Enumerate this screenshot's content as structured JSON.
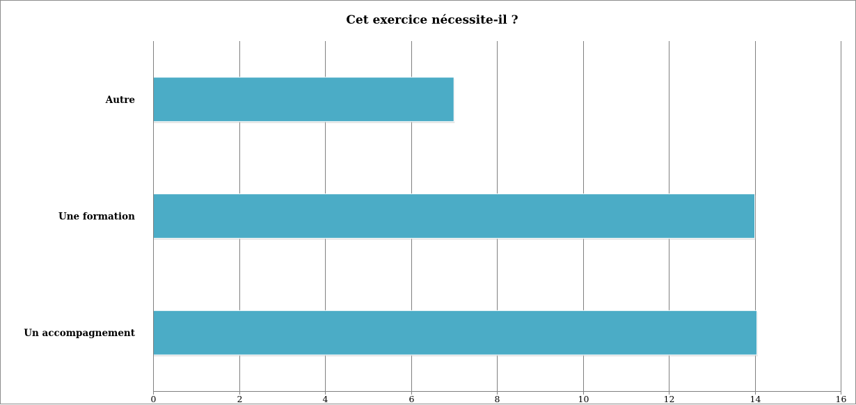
{
  "chart_data": {
    "type": "bar",
    "orientation": "horizontal",
    "title": "Cet exercice nécessite-il ?",
    "categories": [
      "Autre",
      "Une formation",
      "Un accompagnement"
    ],
    "values": [
      7,
      14,
      14.05
    ],
    "xlim": [
      0,
      16
    ],
    "xticks": [
      0,
      2,
      4,
      6,
      8,
      10,
      12,
      14,
      16
    ],
    "xlabel": "",
    "ylabel": "",
    "grid": "vertical",
    "legend": "none",
    "colors": {
      "bar": "#4bacc6",
      "bar_edge": "#ffffff",
      "grid": "#7f7f7f",
      "axis": "#7f7f7f"
    }
  }
}
